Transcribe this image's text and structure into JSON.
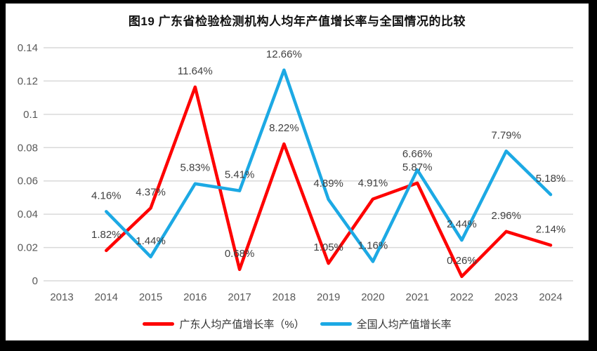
{
  "header": {
    "title": "图19  广东省检验检测机构人均年产值增长率与全国情况的比较"
  },
  "chart_data": {
    "type": "line",
    "title": "图19  广东省检验检测机构人均年产值增长率与全国情况的比较",
    "categories": [
      "2013",
      "2014",
      "2015",
      "2016",
      "2017",
      "2018",
      "2019",
      "2020",
      "2021",
      "2022",
      "2023",
      "2024"
    ],
    "series": [
      {
        "name": "广东人均产值增长率（%）",
        "color": "#FE0000",
        "values_percent": [
          null,
          1.82,
          4.37,
          11.64,
          0.68,
          8.22,
          1.05,
          4.91,
          5.87,
          0.26,
          2.96,
          2.14
        ],
        "labels": [
          null,
          "1.82%",
          "4.37%",
          "11.64%",
          "0.68%",
          "8.22%",
          "1.05%",
          "4.91%",
          "5.87%",
          "0.26%",
          "2.96%",
          "2.14%"
        ]
      },
      {
        "name": "全国人均产值增长率",
        "color": "#1CA9E4",
        "values_percent": [
          null,
          4.16,
          1.44,
          5.83,
          5.41,
          12.66,
          4.89,
          1.16,
          6.66,
          2.44,
          7.79,
          5.18
        ],
        "labels": [
          null,
          "4.16%",
          "1.44%",
          "5.83%",
          "5.41%",
          "12.66%",
          "4.89%",
          "1.16%",
          "6.66%",
          "2.44%",
          "7.79%",
          "5.18%"
        ]
      }
    ],
    "yticks": [
      "0",
      "0.02",
      "0.04",
      "0.06",
      "0.08",
      "0.1",
      "0.12",
      "0.14"
    ],
    "ylim": [
      0,
      0.14
    ],
    "xlabel": "",
    "ylabel": "",
    "grid": true,
    "legend_position": "bottom",
    "style": {
      "grid_color": "#D9D9D9",
      "axis_text_color": "#595959",
      "data_label_color": "#404040",
      "background": "#FFFFFF",
      "frame_color": "#000000",
      "line_width": 4.5
    }
  }
}
